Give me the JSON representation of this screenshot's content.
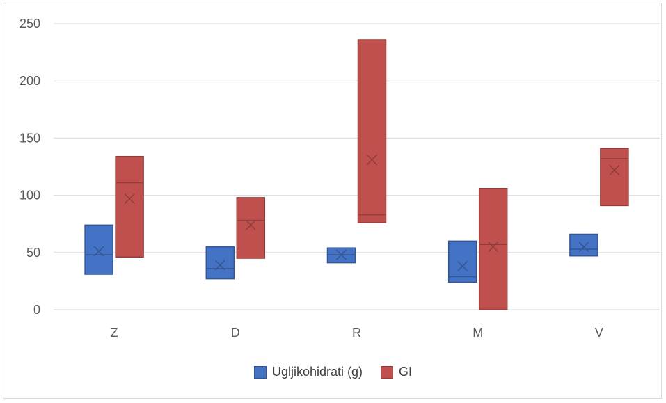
{
  "chart_data": {
    "type": "boxplot",
    "categories": [
      "Z",
      "D",
      "R",
      "M",
      "V"
    ],
    "ylim": [
      0,
      250
    ],
    "yticks": [
      0,
      50,
      100,
      150,
      200,
      250
    ],
    "grid": true,
    "legend_position": "bottom",
    "series": [
      {
        "name": "Ugljikohidrati (g)",
        "color": "#4472c4",
        "boxes": [
          {
            "q1": 31,
            "median": 48,
            "q3": 74,
            "mean": 51
          },
          {
            "q1": 27,
            "median": 36,
            "q3": 55,
            "mean": 39
          },
          {
            "q1": 41,
            "median": 48,
            "q3": 54,
            "mean": 48
          },
          {
            "q1": 24,
            "median": 29,
            "q3": 60,
            "mean": 38
          },
          {
            "q1": 47,
            "median": 53,
            "q3": 66,
            "mean": 55
          }
        ]
      },
      {
        "name": "GI",
        "color": "#c0504d",
        "boxes": [
          {
            "q1": 46,
            "median": 111,
            "q3": 134,
            "mean": 97
          },
          {
            "q1": 45,
            "median": 78,
            "q3": 98,
            "mean": 74
          },
          {
            "q1": 76,
            "median": 83,
            "q3": 236,
            "mean": 131
          },
          {
            "q1": 0,
            "median": 57,
            "q3": 106,
            "mean": 55
          },
          {
            "q1": 91,
            "median": 132,
            "q3": 141,
            "mean": 122
          }
        ]
      }
    ]
  }
}
